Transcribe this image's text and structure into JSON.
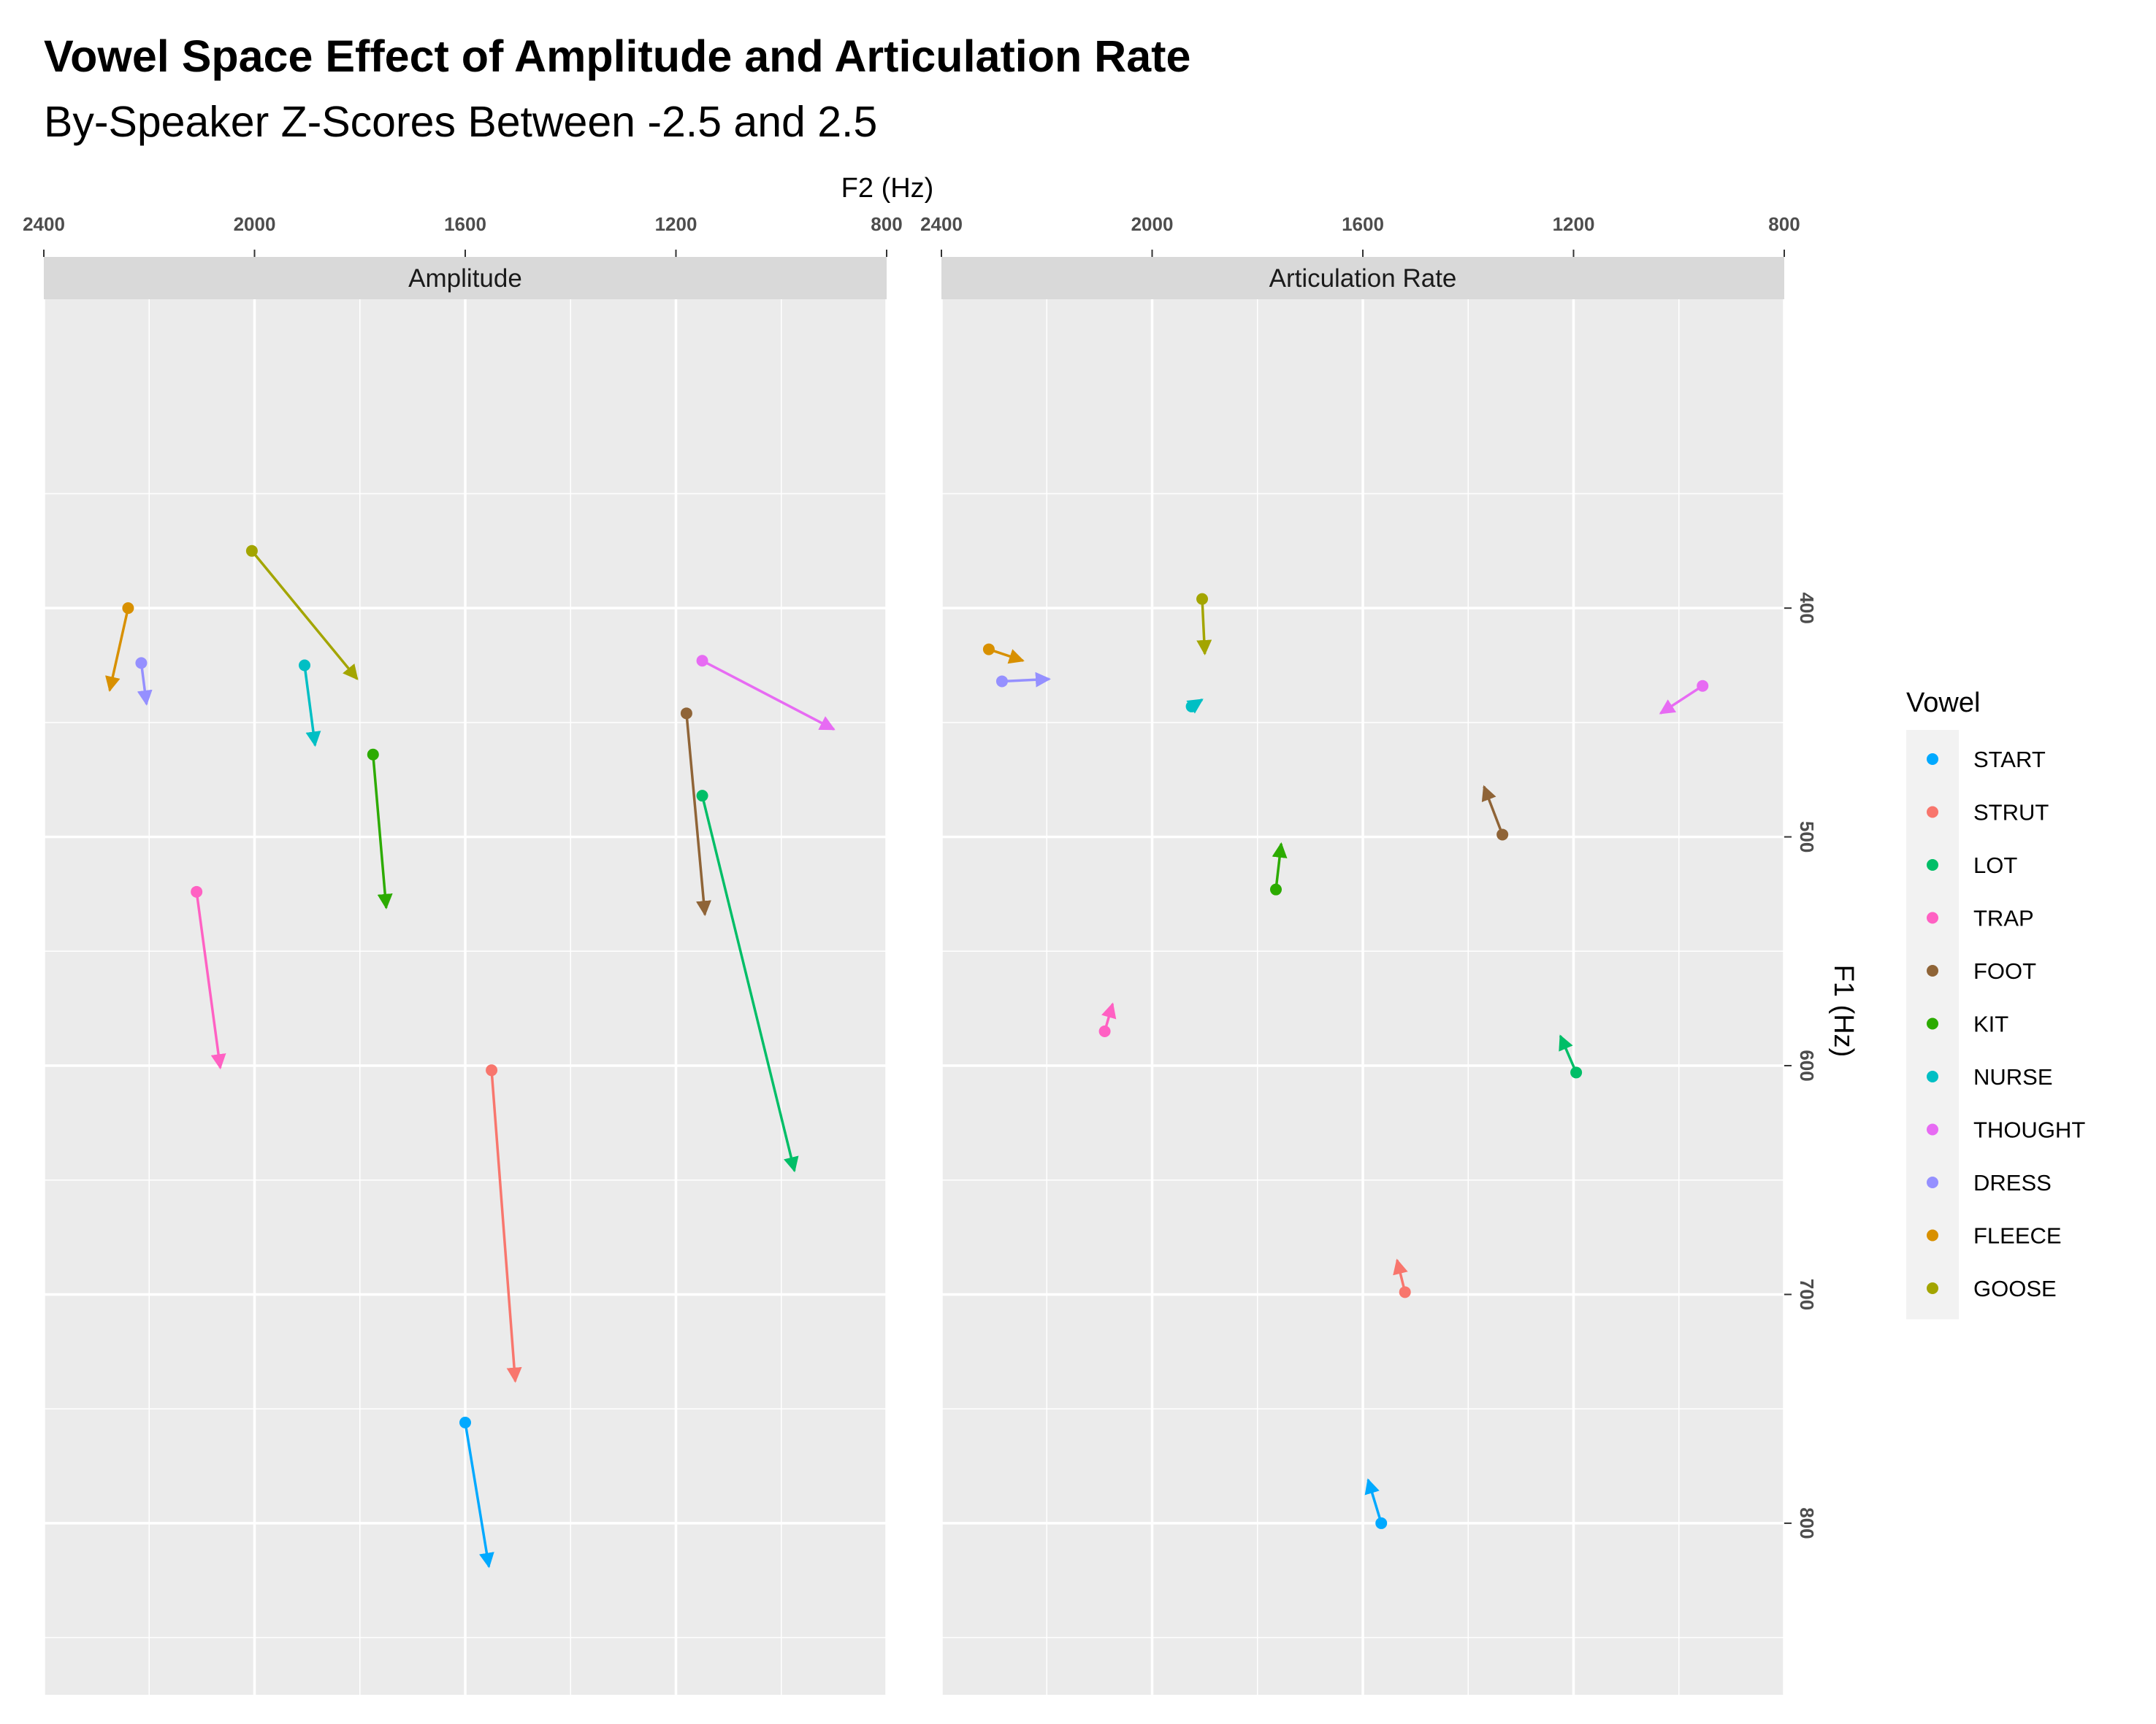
{
  "title": "Vowel Space Effect of Amplitude and Articulation Rate",
  "subtitle": "By-Speaker Z-Scores Between -2.5 and 2.5",
  "chart_data": {
    "type": "scatter",
    "subtype": "faceted vowel-shift arrows",
    "xlabel": "F2 (Hz)",
    "ylabel": "F1 (Hz)",
    "x_axis_position": "top",
    "y_axis_position": "right",
    "x_reversed": true,
    "y_reversed": true,
    "xlim": [
      2400,
      800
    ],
    "ylim": [
      875,
      265
    ],
    "x_ticks": [
      2400,
      2000,
      1600,
      1200,
      800
    ],
    "y_ticks": [
      400,
      500,
      600,
      700,
      800
    ],
    "grid": true,
    "legend": {
      "title": "Vowel",
      "position": "right"
    },
    "vowels": [
      {
        "name": "START",
        "color": "#00A9FF"
      },
      {
        "name": "STRUT",
        "color": "#F8766D"
      },
      {
        "name": "LOT",
        "color": "#00BE67"
      },
      {
        "name": "TRAP",
        "color": "#FF61C3"
      },
      {
        "name": "FOOT",
        "color": "#8F6437"
      },
      {
        "name": "KIT",
        "color": "#2CAB00"
      },
      {
        "name": "NURSE",
        "color": "#00BFC4"
      },
      {
        "name": "THOUGHT",
        "color": "#E76BF3"
      },
      {
        "name": "DRESS",
        "color": "#9590FF"
      },
      {
        "name": "FLEECE",
        "color": "#D89000"
      },
      {
        "name": "GOOSE",
        "color": "#A3A500"
      }
    ],
    "facets": [
      {
        "label": "Amplitude",
        "arrows": [
          {
            "vowel": "GOOSE",
            "from": [
              2005,
              375
            ],
            "to": [
              1805,
              431
            ]
          },
          {
            "vowel": "FLEECE",
            "from": [
              2240,
              400
            ],
            "to": [
              2275,
              436
            ]
          },
          {
            "vowel": "DRESS",
            "from": [
              2215,
              424
            ],
            "to": [
              2205,
              442
            ]
          },
          {
            "vowel": "NURSE",
            "from": [
              1905,
              425
            ],
            "to": [
              1885,
              460
            ]
          },
          {
            "vowel": "KIT",
            "from": [
              1775,
              464
            ],
            "to": [
              1750,
              531
            ]
          },
          {
            "vowel": "THOUGHT",
            "from": [
              1150,
              423
            ],
            "to": [
              900,
              453
            ]
          },
          {
            "vowel": "FOOT",
            "from": [
              1180,
              446
            ],
            "to": [
              1145,
              534
            ]
          },
          {
            "vowel": "LOT",
            "from": [
              1150,
              482
            ],
            "to": [
              975,
              646
            ]
          },
          {
            "vowel": "TRAP",
            "from": [
              2110,
              524
            ],
            "to": [
              2065,
              601
            ]
          },
          {
            "vowel": "STRUT",
            "from": [
              1550,
              602
            ],
            "to": [
              1505,
              738
            ]
          },
          {
            "vowel": "START",
            "from": [
              1600,
              756
            ],
            "to": [
              1555,
              819
            ]
          }
        ]
      },
      {
        "label": "Articulation Rate",
        "arrows": [
          {
            "vowel": "GOOSE",
            "from": [
              1905,
              396
            ],
            "to": [
              1900,
              420
            ]
          },
          {
            "vowel": "FLEECE",
            "from": [
              2310,
              418
            ],
            "to": [
              2245,
              423
            ]
          },
          {
            "vowel": "DRESS",
            "from": [
              2285,
              432
            ],
            "to": [
              2195,
              431
            ]
          },
          {
            "vowel": "NURSE",
            "from": [
              1925,
              443
            ],
            "to": [
              1905,
              440
            ]
          },
          {
            "vowel": "THOUGHT",
            "from": [
              955,
              434
            ],
            "to": [
              1035,
              446
            ]
          },
          {
            "vowel": "FOOT",
            "from": [
              1335,
              499
            ],
            "to": [
              1370,
              478
            ]
          },
          {
            "vowel": "KIT",
            "from": [
              1765,
              523
            ],
            "to": [
              1755,
              503
            ]
          },
          {
            "vowel": "TRAP",
            "from": [
              2090,
              585
            ],
            "to": [
              2075,
              573
            ]
          },
          {
            "vowel": "LOT",
            "from": [
              1195,
              603
            ],
            "to": [
              1225,
              587
            ]
          },
          {
            "vowel": "STRUT",
            "from": [
              1520,
              699
            ],
            "to": [
              1535,
              685
            ]
          },
          {
            "vowel": "START",
            "from": [
              1565,
              800
            ],
            "to": [
              1590,
              781
            ]
          }
        ]
      }
    ]
  }
}
